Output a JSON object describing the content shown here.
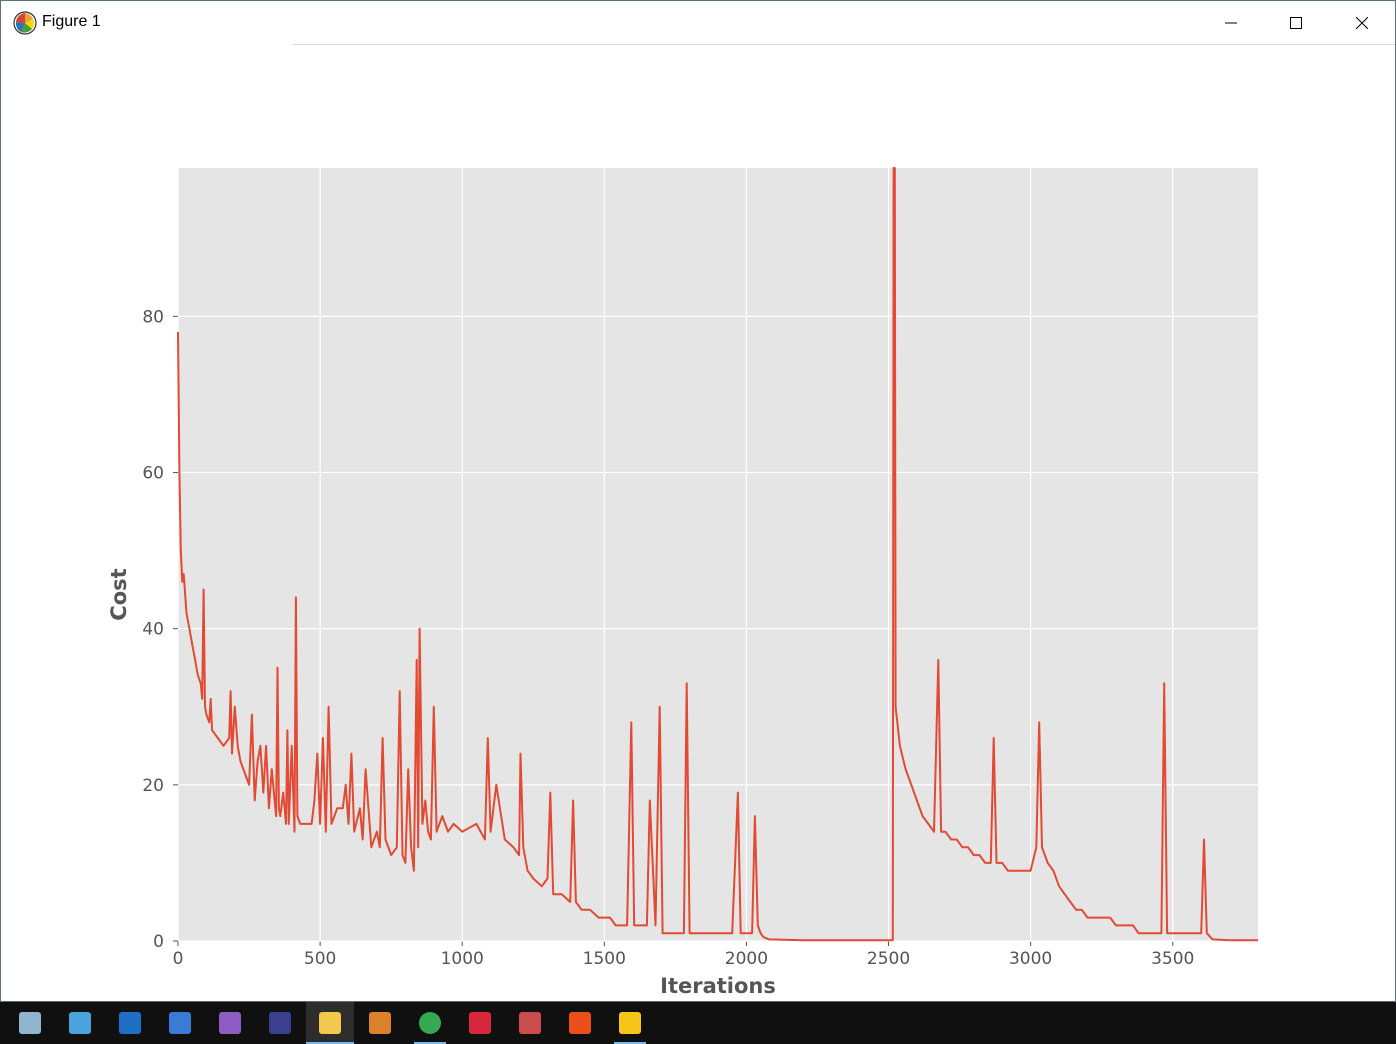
{
  "window": {
    "title": "Figure 1",
    "controls": [
      "minimize",
      "maximize",
      "close"
    ]
  },
  "chart_data": {
    "type": "line",
    "title": "",
    "xlabel": "Iterations",
    "ylabel": "Cost",
    "xlim": [
      0,
      3800
    ],
    "ylim": [
      0,
      99
    ],
    "xticks": [
      0,
      500,
      1000,
      1500,
      2000,
      2500,
      3000,
      3500
    ],
    "yticks": [
      0,
      20,
      40,
      60,
      80
    ],
    "grid": true,
    "legend": "none",
    "colors": {
      "line": "#e24a33",
      "axes_bg": "#e5e5e5",
      "grid": "#ffffff"
    },
    "series": [
      {
        "values": [
          [
            0,
            78
          ],
          [
            5,
            60
          ],
          [
            10,
            50
          ],
          [
            15,
            46
          ],
          [
            20,
            47
          ],
          [
            30,
            42
          ],
          [
            40,
            40
          ],
          [
            50,
            38
          ],
          [
            60,
            36
          ],
          [
            70,
            34
          ],
          [
            80,
            33
          ],
          [
            85,
            31
          ],
          [
            90,
            45
          ],
          [
            95,
            30
          ],
          [
            100,
            29
          ],
          [
            110,
            28
          ],
          [
            115,
            31
          ],
          [
            120,
            27
          ],
          [
            140,
            26
          ],
          [
            160,
            25
          ],
          [
            180,
            26
          ],
          [
            185,
            32
          ],
          [
            190,
            24
          ],
          [
            200,
            30
          ],
          [
            210,
            25
          ],
          [
            220,
            23
          ],
          [
            240,
            21
          ],
          [
            250,
            20
          ],
          [
            260,
            29
          ],
          [
            270,
            18
          ],
          [
            280,
            23
          ],
          [
            290,
            25
          ],
          [
            300,
            19
          ],
          [
            310,
            25
          ],
          [
            320,
            17
          ],
          [
            330,
            22
          ],
          [
            340,
            18
          ],
          [
            345,
            16
          ],
          [
            350,
            35
          ],
          [
            355,
            17
          ],
          [
            360,
            16
          ],
          [
            370,
            19
          ],
          [
            380,
            15
          ],
          [
            385,
            27
          ],
          [
            390,
            15
          ],
          [
            400,
            25
          ],
          [
            410,
            14
          ],
          [
            415,
            44
          ],
          [
            420,
            16
          ],
          [
            430,
            15
          ],
          [
            450,
            15
          ],
          [
            470,
            15
          ],
          [
            480,
            18
          ],
          [
            490,
            24
          ],
          [
            500,
            15
          ],
          [
            510,
            26
          ],
          [
            520,
            14
          ],
          [
            530,
            30
          ],
          [
            540,
            15
          ],
          [
            560,
            17
          ],
          [
            580,
            17
          ],
          [
            590,
            20
          ],
          [
            600,
            15
          ],
          [
            610,
            24
          ],
          [
            620,
            14
          ],
          [
            640,
            17
          ],
          [
            650,
            13
          ],
          [
            660,
            22
          ],
          [
            680,
            12
          ],
          [
            700,
            14
          ],
          [
            710,
            12
          ],
          [
            720,
            26
          ],
          [
            730,
            13
          ],
          [
            750,
            11
          ],
          [
            770,
            12
          ],
          [
            780,
            32
          ],
          [
            790,
            11
          ],
          [
            800,
            10
          ],
          [
            810,
            22
          ],
          [
            820,
            12
          ],
          [
            830,
            9
          ],
          [
            840,
            36
          ],
          [
            845,
            12
          ],
          [
            850,
            40
          ],
          [
            860,
            15
          ],
          [
            870,
            18
          ],
          [
            880,
            14
          ],
          [
            890,
            13
          ],
          [
            900,
            30
          ],
          [
            910,
            14
          ],
          [
            930,
            16
          ],
          [
            950,
            14
          ],
          [
            970,
            15
          ],
          [
            1000,
            14
          ],
          [
            1050,
            15
          ],
          [
            1080,
            13
          ],
          [
            1090,
            26
          ],
          [
            1100,
            14
          ],
          [
            1120,
            20
          ],
          [
            1150,
            13
          ],
          [
            1180,
            12
          ],
          [
            1200,
            11
          ],
          [
            1205,
            24
          ],
          [
            1215,
            12
          ],
          [
            1230,
            9
          ],
          [
            1250,
            8
          ],
          [
            1280,
            7
          ],
          [
            1300,
            8
          ],
          [
            1310,
            19
          ],
          [
            1320,
            6
          ],
          [
            1350,
            6
          ],
          [
            1380,
            5
          ],
          [
            1390,
            18
          ],
          [
            1400,
            5
          ],
          [
            1420,
            4
          ],
          [
            1450,
            4
          ],
          [
            1480,
            3
          ],
          [
            1500,
            3
          ],
          [
            1520,
            3
          ],
          [
            1540,
            2
          ],
          [
            1560,
            2
          ],
          [
            1580,
            2
          ],
          [
            1595,
            28
          ],
          [
            1605,
            2
          ],
          [
            1630,
            2
          ],
          [
            1650,
            2
          ],
          [
            1660,
            18
          ],
          [
            1680,
            2
          ],
          [
            1695,
            30
          ],
          [
            1705,
            1
          ],
          [
            1720,
            1
          ],
          [
            1740,
            1
          ],
          [
            1760,
            1
          ],
          [
            1780,
            1
          ],
          [
            1790,
            33
          ],
          [
            1800,
            1
          ],
          [
            1850,
            1
          ],
          [
            1900,
            1
          ],
          [
            1950,
            1
          ],
          [
            1970,
            19
          ],
          [
            1980,
            1
          ],
          [
            2000,
            1
          ],
          [
            2020,
            1
          ],
          [
            2030,
            16
          ],
          [
            2040,
            2
          ],
          [
            2050,
            1
          ],
          [
            2060,
            0.5
          ],
          [
            2080,
            0.2
          ],
          [
            2200,
            0.1
          ],
          [
            2400,
            0.1
          ],
          [
            2515,
            0.1
          ],
          [
            2518,
            99
          ],
          [
            2522,
            99
          ],
          [
            2525,
            30
          ],
          [
            2540,
            25
          ],
          [
            2560,
            22
          ],
          [
            2580,
            20
          ],
          [
            2600,
            18
          ],
          [
            2620,
            16
          ],
          [
            2640,
            15
          ],
          [
            2660,
            14
          ],
          [
            2675,
            36
          ],
          [
            2685,
            14
          ],
          [
            2700,
            14
          ],
          [
            2720,
            13
          ],
          [
            2740,
            13
          ],
          [
            2760,
            12
          ],
          [
            2780,
            12
          ],
          [
            2800,
            11
          ],
          [
            2820,
            11
          ],
          [
            2840,
            10
          ],
          [
            2860,
            10
          ],
          [
            2870,
            26
          ],
          [
            2880,
            10
          ],
          [
            2900,
            10
          ],
          [
            2920,
            9
          ],
          [
            2940,
            9
          ],
          [
            2960,
            9
          ],
          [
            2980,
            9
          ],
          [
            3000,
            9
          ],
          [
            3020,
            12
          ],
          [
            3030,
            28
          ],
          [
            3040,
            12
          ],
          [
            3060,
            10
          ],
          [
            3080,
            9
          ],
          [
            3100,
            7
          ],
          [
            3120,
            6
          ],
          [
            3140,
            5
          ],
          [
            3160,
            4
          ],
          [
            3180,
            4
          ],
          [
            3200,
            3
          ],
          [
            3220,
            3
          ],
          [
            3240,
            3
          ],
          [
            3260,
            3
          ],
          [
            3280,
            3
          ],
          [
            3300,
            2
          ],
          [
            3320,
            2
          ],
          [
            3340,
            2
          ],
          [
            3360,
            2
          ],
          [
            3380,
            1
          ],
          [
            3400,
            1
          ],
          [
            3410,
            1
          ],
          [
            3420,
            1
          ],
          [
            3440,
            1
          ],
          [
            3460,
            1
          ],
          [
            3470,
            33
          ],
          [
            3480,
            1
          ],
          [
            3500,
            1
          ],
          [
            3520,
            1
          ],
          [
            3540,
            1
          ],
          [
            3560,
            1
          ],
          [
            3580,
            1
          ],
          [
            3600,
            1
          ],
          [
            3610,
            13
          ],
          [
            3620,
            1
          ],
          [
            3640,
            0.2
          ],
          [
            3700,
            0.1
          ],
          [
            3800,
            0.1
          ]
        ]
      }
    ]
  },
  "taskbar": {
    "icons": [
      "notepad-icon",
      "computer-icon",
      "outlook-icon",
      "remote-desktop-icon",
      "visual-studio-icon",
      "eclipse-icon",
      "python-file-icon",
      "sync-icon",
      "chrome-icon",
      "acrobat-icon",
      "paint-icon",
      "git-icon",
      "file-explorer-icon"
    ]
  }
}
